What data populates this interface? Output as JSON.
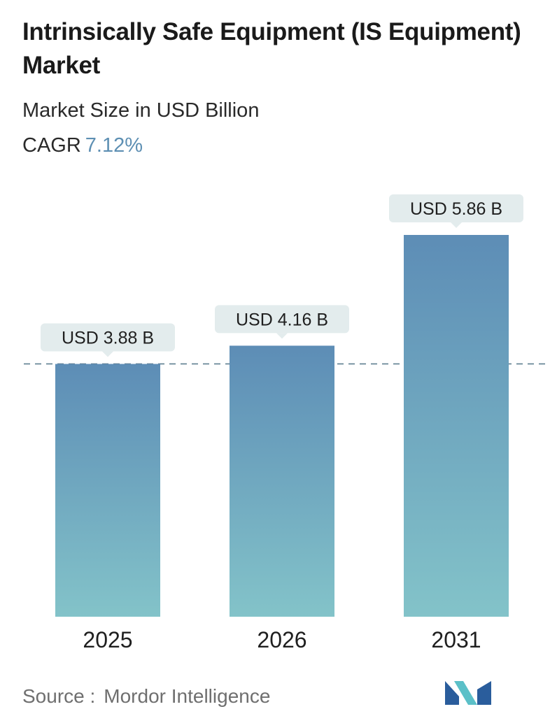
{
  "header": {
    "title": "Intrinsically Safe Equipment (IS Equipment) Market",
    "subtitle": "Market Size in USD Billion",
    "cagr_label": "CAGR",
    "cagr_value": "7.12%"
  },
  "chart_data": {
    "type": "bar",
    "categories": [
      "2025",
      "2026",
      "2031"
    ],
    "values": [
      3.88,
      4.16,
      5.86
    ],
    "data_labels": [
      "USD 3.88 B",
      "USD 4.16 B",
      "USD 5.86 B"
    ],
    "title": "Intrinsically Safe Equipment (IS Equipment) Market",
    "subtitle": "Market Size in USD Billion",
    "xlabel": "",
    "ylabel": "",
    "ylim": [
      0,
      5.86
    ],
    "grid": false,
    "reference_line": 3.88,
    "colors": {
      "bar_top": "#5d8db6",
      "bar_bottom": "#83c3c9",
      "label_bg": "#e3eced",
      "reference_line": "#5f7f90"
    }
  },
  "footer": {
    "source_label": "Source :",
    "source_name": "Mordor Intelligence",
    "logo_icon": "mordor-intelligence-logo-icon",
    "logo_colors": [
      "#2a5d9c",
      "#5bc0c8"
    ]
  }
}
